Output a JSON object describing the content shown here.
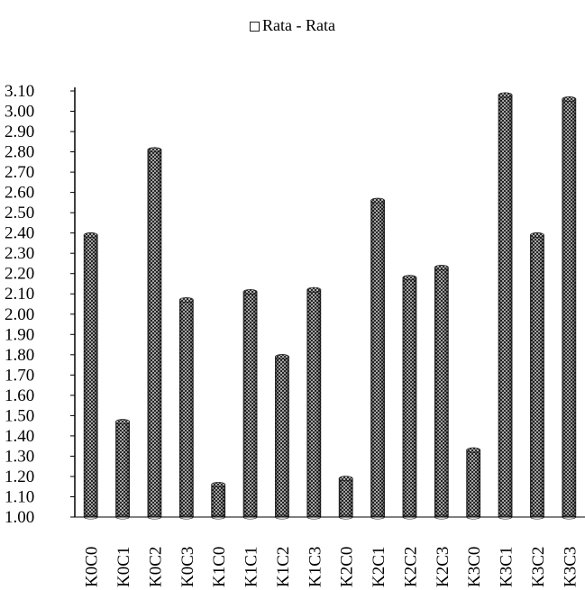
{
  "chart_data": {
    "type": "bar",
    "title": "",
    "xlabel": "",
    "ylabel": "",
    "legend": {
      "entries": [
        "Rata - Rata"
      ],
      "position": "top-center"
    },
    "ylim": [
      1.0,
      3.1
    ],
    "yticks": [
      "1.00",
      "1.10",
      "1.20",
      "1.30",
      "1.40",
      "1.50",
      "1.60",
      "1.70",
      "1.80",
      "1.90",
      "2.00",
      "2.10",
      "2.20",
      "2.30",
      "2.40",
      "2.50",
      "2.60",
      "2.70",
      "2.80",
      "2.90",
      "3.00",
      "3.10"
    ],
    "categories": [
      "K0C0",
      "K0C1",
      "K0C2",
      "K0C3",
      "K1C0",
      "K1C1",
      "K1C2",
      "K1C3",
      "K2C0",
      "K2C1",
      "K2C2",
      "K2C3",
      "K3C0",
      "K3C1",
      "K3C2",
      "K3C3"
    ],
    "series": [
      {
        "name": "Rata - Rata",
        "values": [
          2.39,
          1.47,
          2.81,
          2.07,
          1.16,
          2.11,
          1.79,
          2.12,
          1.19,
          2.56,
          2.18,
          2.23,
          1.33,
          3.08,
          2.39,
          3.06
        ]
      }
    ],
    "grid": false,
    "bar_style": "cylinder with crosshatch pattern",
    "colors": {
      "bar_fill": "#5a5a5a",
      "bar_hatch": "#ffffff",
      "axis": "#000000"
    }
  }
}
